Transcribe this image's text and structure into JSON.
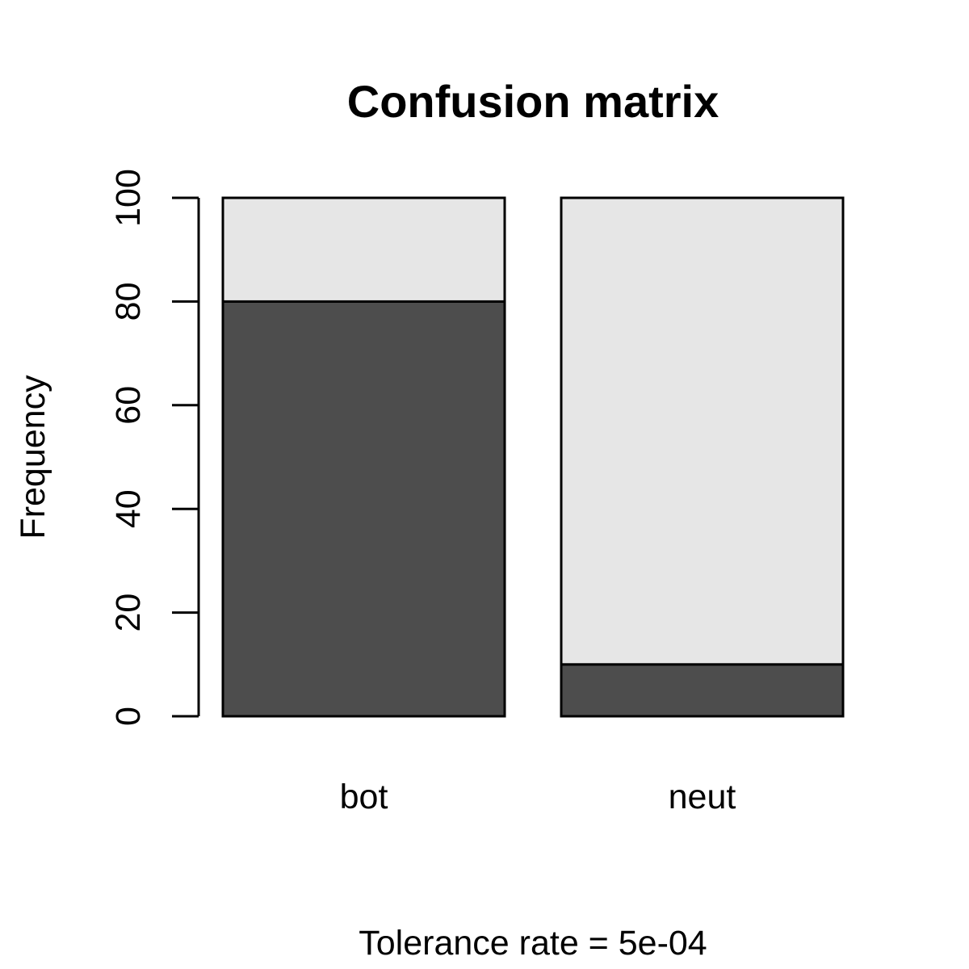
{
  "chart_data": {
    "type": "bar",
    "stacked": true,
    "title": "Confusion matrix",
    "xlabel": "Tolerance rate = 5e-04",
    "ylabel": "Frequency",
    "categories": [
      "bot",
      "neut"
    ],
    "series": [
      {
        "values": [
          80,
          10
        ],
        "color": "#4d4d4d"
      },
      {
        "values": [
          20,
          90
        ],
        "color": "#e6e6e6"
      }
    ],
    "ylim": [
      0,
      100
    ],
    "yticks": [
      0,
      20,
      40,
      60,
      80,
      100
    ],
    "ytick_labels": [
      "0",
      "20",
      "40",
      "60",
      "80",
      "100"
    ],
    "grid": false,
    "legend": "none"
  }
}
